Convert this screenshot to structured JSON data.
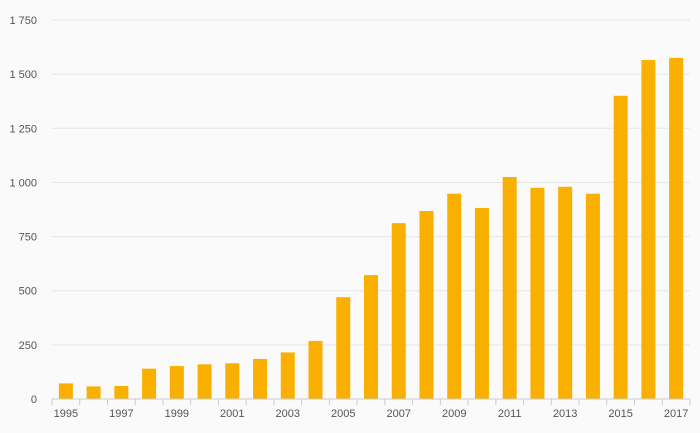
{
  "chart_data": {
    "type": "bar",
    "title": "",
    "xlabel": "",
    "ylabel": "",
    "categories": [
      "1995",
      "1996",
      "1997",
      "1998",
      "1999",
      "2000",
      "2001",
      "2002",
      "2003",
      "2004",
      "2005",
      "2006",
      "2007",
      "2008",
      "2009",
      "2010",
      "2011",
      "2012",
      "2013",
      "2014",
      "2015",
      "2016",
      "2017"
    ],
    "x_tick_labels": [
      "1995",
      "1997",
      "1999",
      "2001",
      "2003",
      "2005",
      "2007",
      "2009",
      "2011",
      "2013",
      "2015",
      "2017"
    ],
    "series": [
      {
        "values": [
          72,
          58,
          60,
          140,
          152,
          160,
          165,
          185,
          215,
          268,
          470,
          572,
          812,
          868,
          948,
          882,
          1025,
          975,
          980,
          948,
          1400,
          1565,
          1575
        ]
      }
    ],
    "ylim": [
      0,
      1750
    ],
    "y_ticks": [
      0,
      250,
      500,
      750,
      1000,
      1250,
      1500,
      1750
    ],
    "y_tick_labels": [
      "0",
      "250",
      "500",
      "750",
      "1 000",
      "1 250",
      "1 500",
      "1 750"
    ],
    "grid": true,
    "colors": {
      "bar": "#f9b000",
      "grid": "#e6e6e6",
      "axis": "#cccccc",
      "background": "#fafafa"
    }
  }
}
